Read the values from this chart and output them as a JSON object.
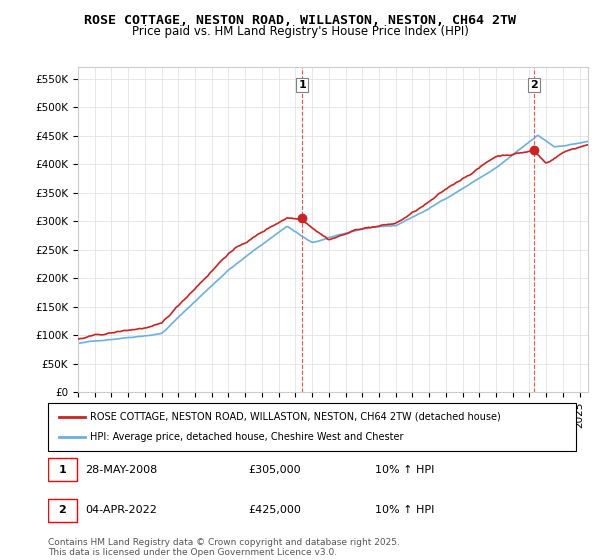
{
  "title": "ROSE COTTAGE, NESTON ROAD, WILLASTON, NESTON, CH64 2TW",
  "subtitle": "Price paid vs. HM Land Registry's House Price Index (HPI)",
  "ylabel_ticks": [
    "£0",
    "£50K",
    "£100K",
    "£150K",
    "£200K",
    "£250K",
    "£300K",
    "£350K",
    "£400K",
    "£450K",
    "£500K",
    "£550K"
  ],
  "ytick_values": [
    0,
    50000,
    100000,
    150000,
    200000,
    250000,
    300000,
    350000,
    400000,
    450000,
    500000,
    550000
  ],
  "ylim": [
    0,
    570000
  ],
  "xlim_start": 1995.0,
  "xlim_end": 2025.5,
  "transaction1": {
    "date_x": 2008.41,
    "price": 305000,
    "label": "1"
  },
  "transaction2": {
    "date_x": 2022.25,
    "price": 425000,
    "label": "2"
  },
  "legend_line1": "ROSE COTTAGE, NESTON ROAD, WILLASTON, NESTON, CH64 2TW (detached house)",
  "legend_line2": "HPI: Average price, detached house, Cheshire West and Chester",
  "annotation1_text": "28-MAY-2008    £305,000    10% ↑ HPI",
  "annotation2_text": "04-APR-2022    £425,000    10% ↑ HPI",
  "footer": "Contains HM Land Registry data © Crown copyright and database right 2025.\nThis data is licensed under the Open Government Licence v3.0.",
  "hpi_color": "#6ab0e0",
  "price_color": "#cc2222",
  "background_color": "#ffffff",
  "grid_color": "#dddddd"
}
